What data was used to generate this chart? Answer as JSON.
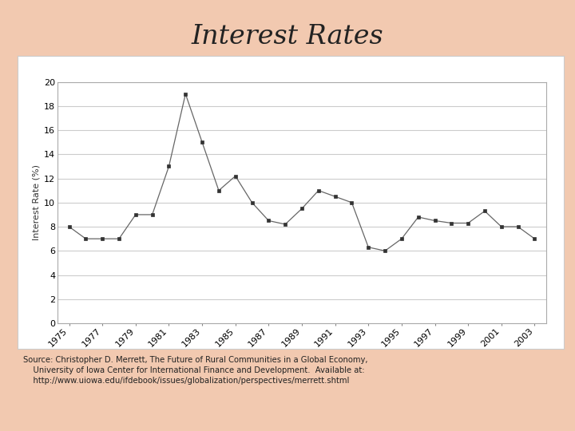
{
  "years": [
    1975,
    1976,
    1977,
    1978,
    1979,
    1980,
    1981,
    1982,
    1983,
    1984,
    1985,
    1986,
    1987,
    1988,
    1989,
    1990,
    1991,
    1992,
    1993,
    1994,
    1995,
    1996,
    1997,
    1998,
    1999,
    2000,
    2001,
    2002,
    2003
  ],
  "values": [
    8.0,
    7.0,
    7.0,
    7.0,
    9.0,
    9.0,
    13.0,
    19.0,
    15.0,
    11.0,
    12.2,
    10.0,
    8.5,
    8.2,
    9.5,
    11.0,
    10.5,
    10.0,
    6.3,
    6.0,
    7.0,
    8.8,
    8.5,
    8.3,
    8.3,
    9.3,
    8.0,
    8.0,
    7.0
  ],
  "title": "Interest Rates",
  "ylabel": "Interest Rate (%)",
  "ylim": [
    0,
    20
  ],
  "yticks": [
    0,
    2,
    4,
    6,
    8,
    10,
    12,
    14,
    16,
    18,
    20
  ],
  "xtick_years": [
    1975,
    1977,
    1979,
    1981,
    1983,
    1985,
    1987,
    1989,
    1991,
    1993,
    1995,
    1997,
    1999,
    2001,
    2003
  ],
  "background_color": "#f2c9b0",
  "chart_bg": "#ffffff",
  "chart_outer_bg": "#ffffff",
  "grid_color": "#cccccc",
  "line_color": "#666666",
  "marker_color": "#333333",
  "title_fontsize": 24,
  "axis_fontsize": 8,
  "ylabel_fontsize": 8,
  "source_text": "Source: Christopher D. Merrett, The Future of Rural Communities in a Global Economy,\n    University of Iowa Center for International Finance and Development.  Available at:\n    http://www.uiowa.edu/ifdebook/issues/globalization/perspectives/merrett.shtml"
}
